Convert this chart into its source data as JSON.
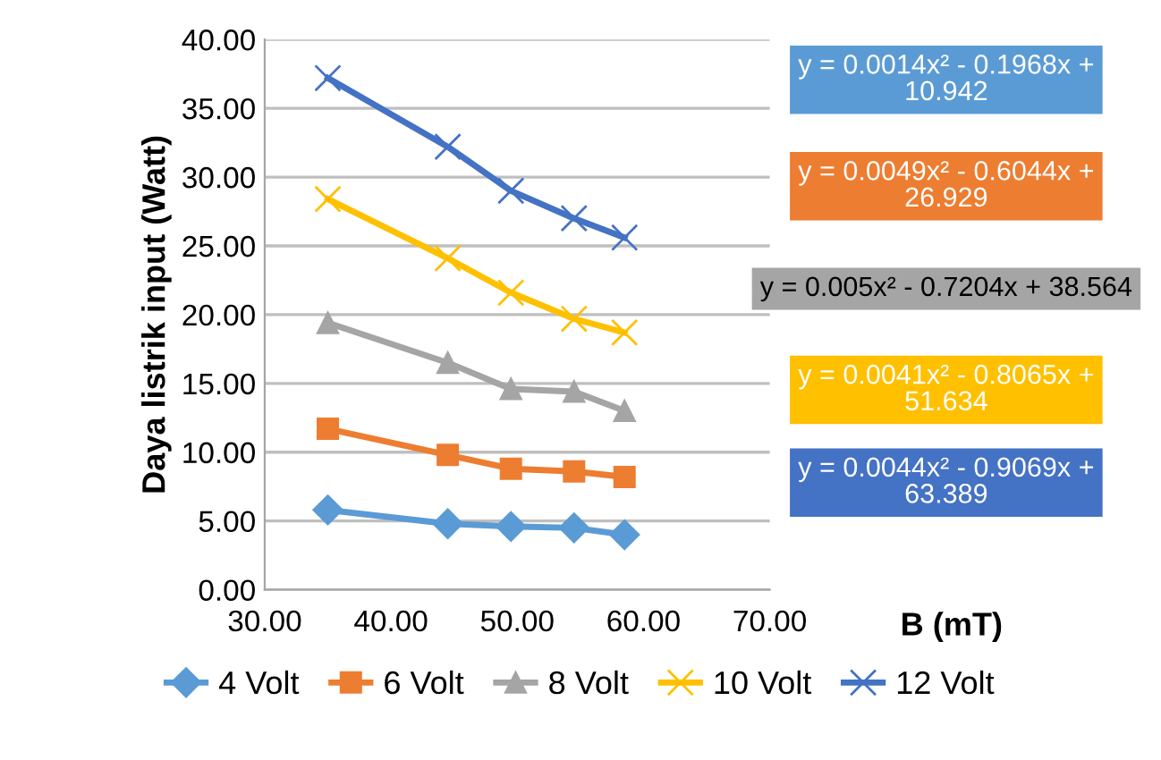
{
  "chart_data": {
    "type": "line",
    "xlabel": "B (mT)",
    "ylabel": "Daya listrik input (Watt)",
    "x": [
      35,
      44.5,
      49.5,
      54.5,
      58.5
    ],
    "series": [
      {
        "name": "4 Volt",
        "color": "#5b9bd5",
        "marker": "diamond",
        "values": [
          5.8,
          4.8,
          4.6,
          4.5,
          4.0
        ]
      },
      {
        "name": "6 Volt",
        "color": "#ed7d31",
        "marker": "square",
        "values": [
          11.7,
          9.8,
          8.8,
          8.6,
          8.2
        ]
      },
      {
        "name": "8 Volt",
        "color": "#a5a5a5",
        "marker": "triangle",
        "values": [
          19.4,
          16.5,
          14.6,
          14.4,
          13.0
        ]
      },
      {
        "name": "10 Volt",
        "color": "#ffc000",
        "marker": "cross",
        "values": [
          28.4,
          24.1,
          21.6,
          19.7,
          18.7
        ]
      },
      {
        "name": "12 Volt",
        "color": "#4472c4",
        "marker": "cross",
        "values": [
          37.2,
          32.2,
          29.0,
          27.0,
          25.6
        ]
      }
    ],
    "annotations": [
      "y = 0.0014x² - 0.1968x +\n10.942",
      "y = 0.0049x² - 0.6044x +\n26.929",
      "y = 0.005x² - 0.7204x + 38.564",
      "y = 0.0041x² - 0.8065x +\n51.634",
      "y = 0.0044x² - 0.9069x +\n63.389"
    ],
    "xlim": [
      30,
      70
    ],
    "xticks": [
      {
        "value": 30,
        "label": "30.00"
      },
      {
        "value": 40,
        "label": "40.00"
      },
      {
        "value": 50,
        "label": "50.00"
      },
      {
        "value": 60,
        "label": "60.00"
      },
      {
        "value": 70,
        "label": "70.00"
      }
    ],
    "ylim": [
      0,
      40
    ],
    "yticks": [
      {
        "value": 0,
        "label": "0.00"
      },
      {
        "value": 5,
        "label": "5.00"
      },
      {
        "value": 10,
        "label": "10.00"
      },
      {
        "value": 15,
        "label": "15.00"
      },
      {
        "value": 20,
        "label": "20.00"
      },
      {
        "value": 25,
        "label": "25.00"
      },
      {
        "value": 30,
        "label": "30.00"
      },
      {
        "value": 35,
        "label": "35.00"
      },
      {
        "value": 40,
        "label": "40.00"
      }
    ],
    "grid": "y",
    "legend": "bottom"
  }
}
